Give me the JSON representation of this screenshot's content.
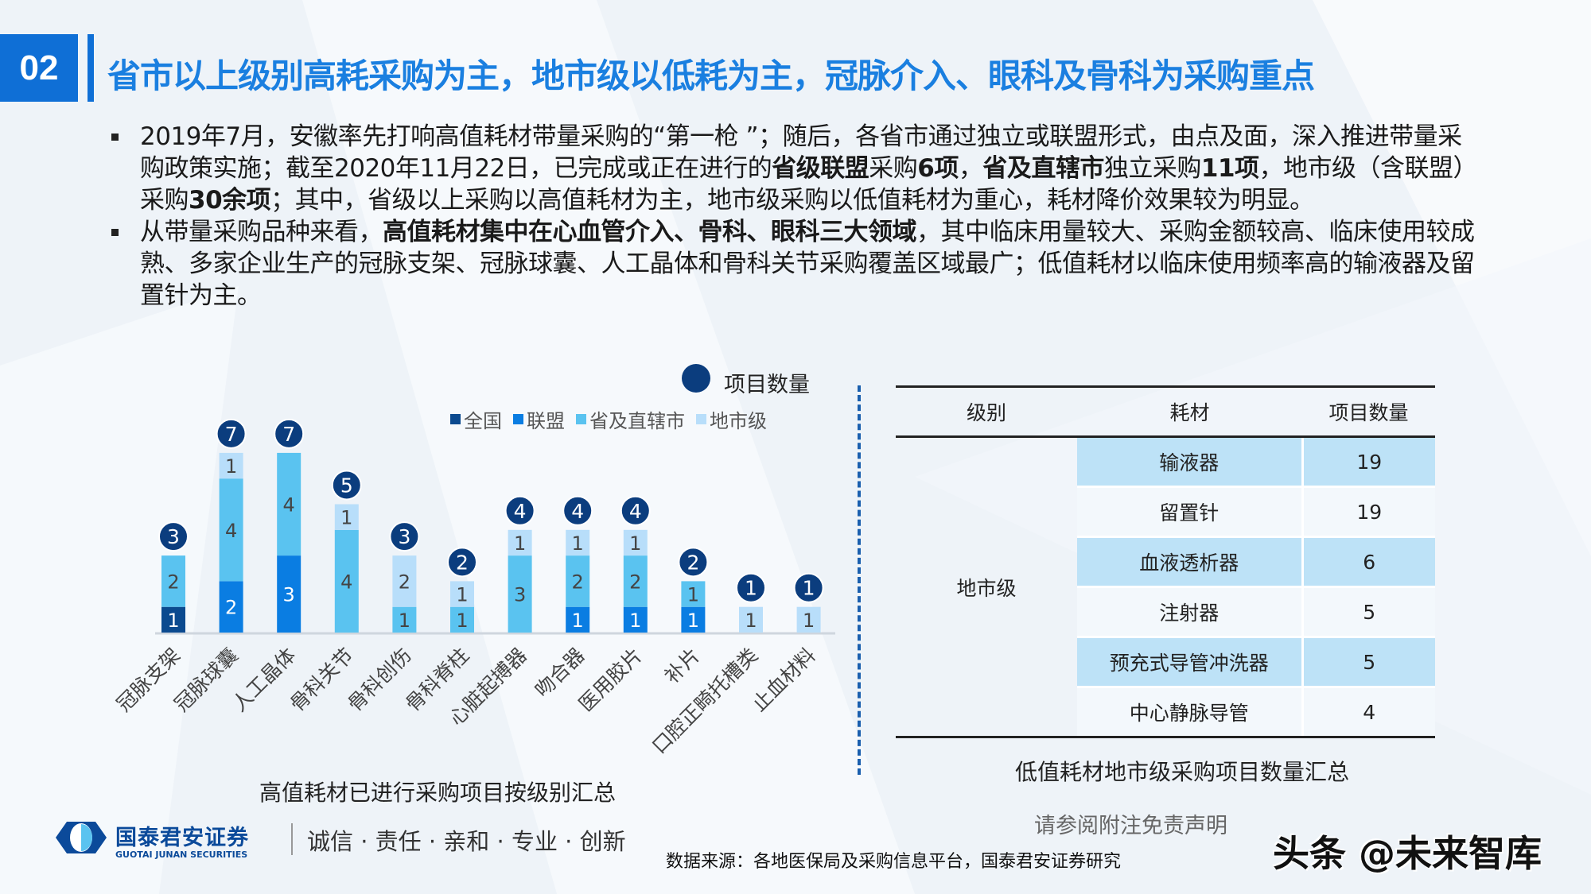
{
  "header": {
    "section_number": "02",
    "title": "省市以上级别高耗采购为主，地市级以低耗为主，冠脉介入、眼科及骨科为采购重点"
  },
  "bullets": [
    {
      "segments": [
        {
          "text": "2019年7月，安徽率先打响高值耗材带量采购的“第一枪 ”；随后，各省市通过独立或联盟形式，由点及面，深入推进带量采购政策实施；截至2020年11月22日，已完成或正在进行的",
          "bold": false
        },
        {
          "text": "省级联盟",
          "bold": true
        },
        {
          "text": "采购",
          "bold": false
        },
        {
          "text": "6项",
          "bold": true
        },
        {
          "text": "，",
          "bold": false
        },
        {
          "text": "省及直辖市",
          "bold": true
        },
        {
          "text": "独立采购",
          "bold": false
        },
        {
          "text": "11项",
          "bold": true
        },
        {
          "text": "，地市级（含联盟）采购",
          "bold": false
        },
        {
          "text": "30余项",
          "bold": true
        },
        {
          "text": "；其中，省级以上采购以高值耗材为主，地市级采购以低值耗材为重心，耗材降价效果较为明显。",
          "bold": false
        }
      ]
    },
    {
      "segments": [
        {
          "text": "从带量采购品种来看，",
          "bold": false
        },
        {
          "text": "高值耗材集中在心血管介入、骨科、眼科三大领域",
          "bold": true
        },
        {
          "text": "，其中临床用量较大、采购金额较高、临床使用较成熟、多家企业生产的冠脉支架、冠脉球囊、人工晶体和骨科关节采购覆盖区域最广；低值耗材以临床使用频率高的输液器及留置针为主。",
          "bold": false
        }
      ]
    }
  ],
  "chart_data": [
    {
      "type": "bar",
      "stacked": true,
      "title": "高值耗材已进行采购项目按级别汇总",
      "total_legend_label": "项目数量",
      "total_marker_color": "#0b3d7e",
      "categories": [
        "冠脉支架",
        "冠脉球囊",
        "人工晶体",
        "骨科关节",
        "骨科创伤",
        "骨科脊柱",
        "心脏起搏器",
        "吻合器",
        "医用胶片",
        "补片",
        "口腔正畸托槽类",
        "止血材料"
      ],
      "series": [
        {
          "name": "全国",
          "color": "#0b4a8f",
          "values": [
            1,
            0,
            0,
            0,
            0,
            0,
            0,
            0,
            0,
            0,
            0,
            0
          ]
        },
        {
          "name": "联盟",
          "color": "#0a7de2",
          "values": [
            0,
            2,
            3,
            0,
            0,
            0,
            0,
            1,
            1,
            1,
            0,
            0
          ]
        },
        {
          "name": "省及直辖市",
          "color": "#5ac3f0",
          "values": [
            2,
            4,
            4,
            4,
            1,
            1,
            3,
            2,
            2,
            1,
            0,
            0
          ]
        },
        {
          "name": "地市级",
          "color": "#b8defa",
          "values": [
            0,
            1,
            0,
            1,
            2,
            1,
            1,
            1,
            1,
            0,
            1,
            1
          ]
        }
      ],
      "totals": [
        3,
        7,
        7,
        5,
        3,
        2,
        4,
        4,
        4,
        2,
        1,
        1
      ],
      "legend_position": "top-right",
      "grid": false
    },
    {
      "type": "table",
      "title": "低值耗材地市级采购项目数量汇总",
      "columns": [
        "级别",
        "耗材",
        "项目数量"
      ],
      "group_label": "地市级",
      "rows": [
        {
          "item": "输液器",
          "count": "19"
        },
        {
          "item": "留置针",
          "count": "19"
        },
        {
          "item": "血液透析器",
          "count": "6"
        },
        {
          "item": "注射器",
          "count": "5"
        },
        {
          "item": "预充式导管冲洗器",
          "count": "5"
        },
        {
          "item": "中心静脉导管",
          "count": "4"
        }
      ]
    }
  ],
  "footer": {
    "brand_cn": "国泰君安证券",
    "brand_en": "GUOTAI JUNAN SECURITIES",
    "slogan": "诚信 · 责任 · 亲和 · 专业 · 创新",
    "source": "数据来源：各地医保局及采购信息平台，国泰君安证券研究",
    "disclaimer": "请参阅附注免责声明",
    "watermark": "头条 @未来智库"
  },
  "colors": {
    "accent": "#0f6fd6",
    "title": "#1a7fe0",
    "table_highlight": "#bde2f7"
  }
}
